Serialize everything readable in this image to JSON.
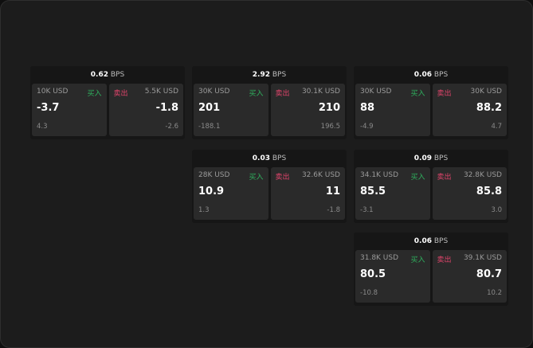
{
  "labels": {
    "bps": "BPS",
    "buy": "买入",
    "sell": "卖出"
  },
  "colors": {
    "buy": "#2fb05e",
    "sell": "#e0446b"
  },
  "cards": [
    {
      "bps": "0.62",
      "buy": {
        "size": "10K USD",
        "price": "-3.7",
        "change": "4.3"
      },
      "sell": {
        "size": "5.5K USD",
        "price": "-1.8",
        "change": "-2.6"
      }
    },
    {
      "bps": "2.92",
      "buy": {
        "size": "30K USD",
        "price": "201",
        "change": "-188.1"
      },
      "sell": {
        "size": "30.1K USD",
        "price": "210",
        "change": "196.5"
      }
    },
    {
      "bps": "0.06",
      "buy": {
        "size": "30K USD",
        "price": "88",
        "change": "-4.9"
      },
      "sell": {
        "size": "30K USD",
        "price": "88.2",
        "change": "4.7"
      }
    },
    {
      "bps": "0.03",
      "buy": {
        "size": "28K USD",
        "price": "10.9",
        "change": "1.3"
      },
      "sell": {
        "size": "32.6K USD",
        "price": "11",
        "change": "-1.8"
      }
    },
    {
      "bps": "0.09",
      "buy": {
        "size": "34.1K USD",
        "price": "85.5",
        "change": "-3.1"
      },
      "sell": {
        "size": "32.8K USD",
        "price": "85.8",
        "change": "3.0"
      }
    },
    {
      "bps": "0.06",
      "buy": {
        "size": "31.8K USD",
        "price": "80.5",
        "change": "-10.8"
      },
      "sell": {
        "size": "39.1K USD",
        "price": "80.7",
        "change": "10.2"
      }
    }
  ]
}
